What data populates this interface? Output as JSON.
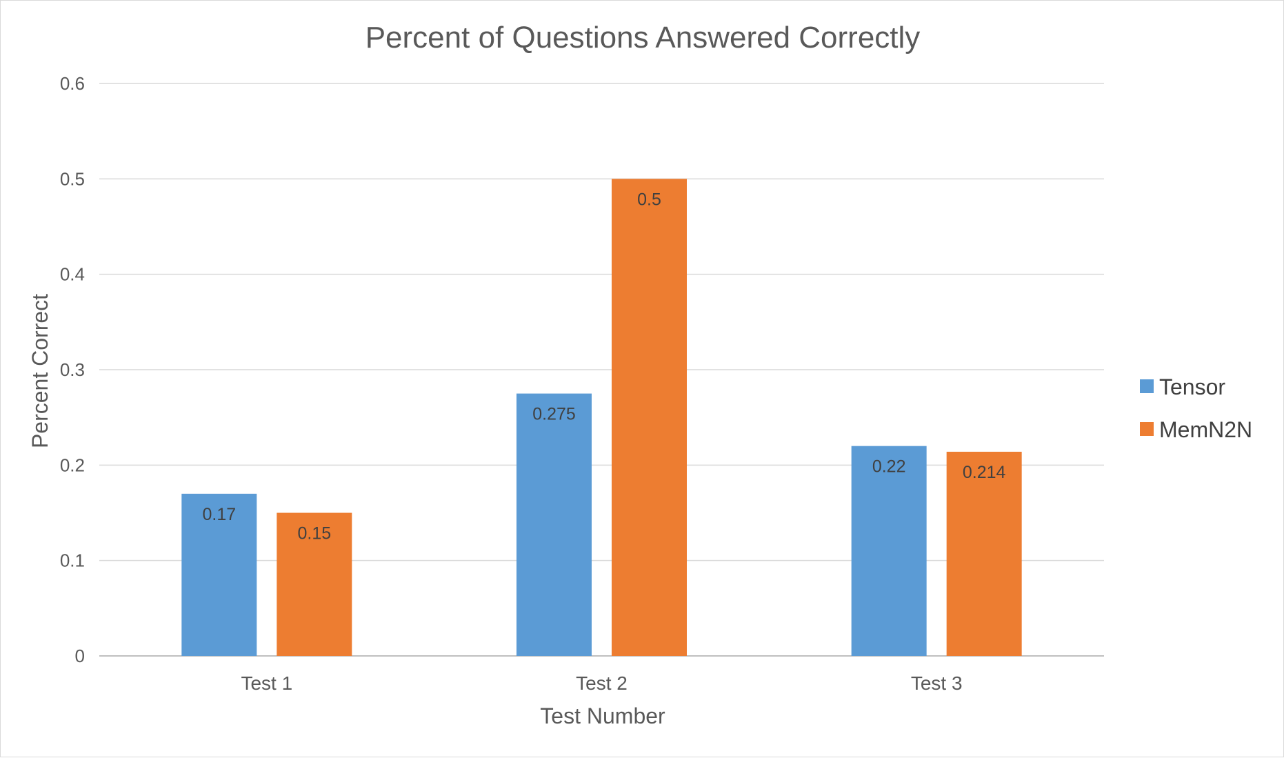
{
  "chart_data": {
    "type": "bar",
    "title": "Percent of Questions Answered Correctly",
    "xlabel": "Test Number",
    "ylabel": "Percent Correct",
    "categories": [
      "Test 1",
      "Test 2",
      "Test 3"
    ],
    "series": [
      {
        "name": "Tensor",
        "color": "#5B9BD5",
        "values": [
          0.17,
          0.275,
          0.22
        ],
        "labels": [
          "0.17",
          "0.275",
          "0.22"
        ]
      },
      {
        "name": "MemN2N",
        "color": "#ED7D31",
        "values": [
          0.15,
          0.5,
          0.214
        ],
        "labels": [
          "0.15",
          "0.5",
          "0.214"
        ]
      }
    ],
    "ylim": [
      0,
      0.6
    ],
    "yticks": [
      0,
      0.1,
      0.2,
      0.3,
      0.4,
      0.5,
      0.6
    ],
    "ytick_labels": [
      "0",
      "0.1",
      "0.2",
      "0.3",
      "0.4",
      "0.5",
      "0.6"
    ],
    "grid": true,
    "legend_position": "right"
  }
}
